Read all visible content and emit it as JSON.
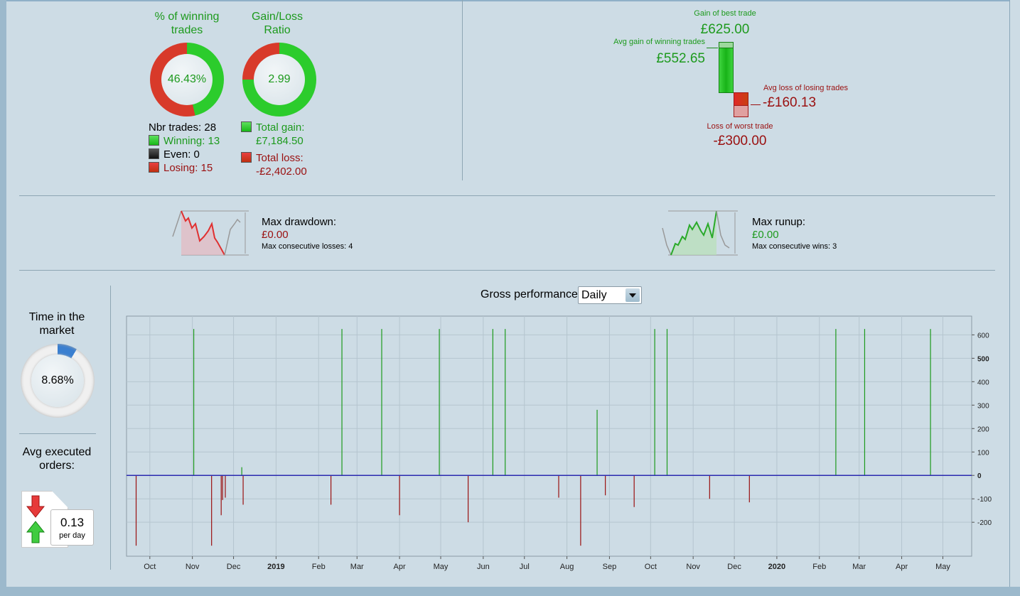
{
  "win_pct": {
    "title": "% of winning trades",
    "value": "46.43%",
    "fraction": 0.4643
  },
  "gl_ratio": {
    "title": "Gain/Loss Ratio",
    "value": "2.99",
    "gain_fraction": 0.7495
  },
  "trades": {
    "nbr": "Nbr trades: 28",
    "winning": "Winning: 13",
    "even": "Even: 0",
    "losing": "Losing: 15"
  },
  "totals": {
    "gain_label": "Total gain:",
    "gain": "£7,184.50",
    "loss_label": "Total loss:",
    "loss": "-£2,402.00"
  },
  "avg": {
    "best_label": "Gain of best trade",
    "best": "£625.00",
    "avg_gain_label": "Avg gain of winning trades",
    "avg_gain": "£552.65",
    "avg_loss_label": "Avg loss of losing trades",
    "avg_loss": "-£160.13",
    "worst_label": "Loss of worst trade",
    "worst": "-£300.00"
  },
  "drawdown": {
    "label": "Max drawdown:",
    "value": "£0.00",
    "consec": "Max consecutive losses: 4"
  },
  "runup": {
    "label": "Max runup:",
    "value": "£0.00",
    "consec": "Max consecutive wins: 3"
  },
  "time_market": {
    "title": "Time in the market",
    "value": "8.68%",
    "fraction": 0.0868
  },
  "orders": {
    "title": "Avg executed orders:",
    "value": "0.13",
    "unit": "per day"
  },
  "colors": {
    "gain": "#1d9a1d",
    "loss": "#9a1010",
    "zero_line": "#2a2ab0",
    "time_arc": "#3a7fd0"
  },
  "chart_data": {
    "type": "bar",
    "title": "Gross performance",
    "period": "Daily",
    "ylim": [
      -345,
      680
    ],
    "yticks": [
      600,
      500,
      400,
      300,
      200,
      100,
      0,
      -100,
      -200
    ],
    "xlim": [
      "2018-09-14",
      "2020-05-22"
    ],
    "xticks": [
      [
        "2018-10-01",
        "Oct"
      ],
      [
        "2018-11-01",
        "Nov"
      ],
      [
        "2018-12-01",
        "Dec"
      ],
      [
        "2019-01-01",
        "2019"
      ],
      [
        "2019-02-01",
        "Feb"
      ],
      [
        "2019-03-01",
        "Mar"
      ],
      [
        "2019-04-01",
        "Apr"
      ],
      [
        "2019-05-01",
        "May"
      ],
      [
        "2019-06-01",
        "Jun"
      ],
      [
        "2019-07-01",
        "Jul"
      ],
      [
        "2019-08-01",
        "Aug"
      ],
      [
        "2019-09-01",
        "Sep"
      ],
      [
        "2019-10-01",
        "Oct"
      ],
      [
        "2019-11-01",
        "Nov"
      ],
      [
        "2019-12-01",
        "Dec"
      ],
      [
        "2020-01-01",
        "2020"
      ],
      [
        "2020-02-01",
        "Feb"
      ],
      [
        "2020-03-01",
        "Mar"
      ],
      [
        "2020-04-01",
        "Apr"
      ],
      [
        "2020-05-01",
        "May"
      ]
    ],
    "grid": true,
    "points": [
      [
        "2018-09-21",
        -300
      ],
      [
        "2018-11-02",
        625
      ],
      [
        "2018-11-15",
        -300
      ],
      [
        "2018-11-22",
        -170
      ],
      [
        "2018-11-23",
        -105
      ],
      [
        "2018-11-25",
        -95
      ],
      [
        "2018-12-07",
        35
      ],
      [
        "2018-12-08",
        -125
      ],
      [
        "2019-02-10",
        -125
      ],
      [
        "2019-02-18",
        625
      ],
      [
        "2019-03-19",
        625
      ],
      [
        "2019-04-01",
        -170
      ],
      [
        "2019-04-30",
        625
      ],
      [
        "2019-05-21",
        -200
      ],
      [
        "2019-06-08",
        625
      ],
      [
        "2019-06-17",
        625
      ],
      [
        "2019-07-26",
        -95
      ],
      [
        "2019-08-11",
        -300
      ],
      [
        "2019-08-23",
        280
      ],
      [
        "2019-08-29",
        -85
      ],
      [
        "2019-09-19",
        -135
      ],
      [
        "2019-10-04",
        625
      ],
      [
        "2019-10-13",
        625
      ],
      [
        "2019-11-13",
        -100
      ],
      [
        "2019-12-12",
        -115
      ],
      [
        "2020-02-13",
        625
      ],
      [
        "2020-03-05",
        625
      ],
      [
        "2020-04-22",
        625
      ]
    ]
  }
}
